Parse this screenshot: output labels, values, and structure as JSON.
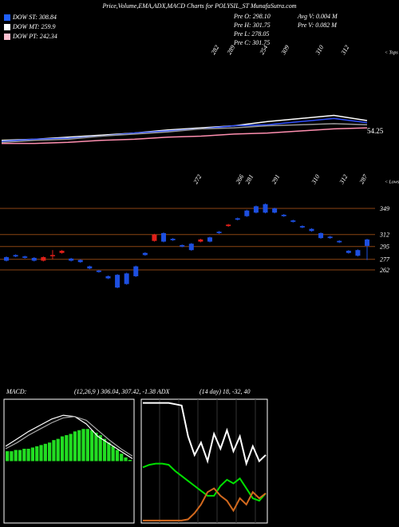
{
  "header": {
    "title": "Price,Volume,EMA,ADX,MACD Charts for POLYSIL_ST MunafaSutra.com",
    "legend": [
      {
        "label": "DOW ST: 308.84",
        "color": "#1f5fff"
      },
      {
        "label": "DOW MT: 259.9",
        "color": "#ffffff"
      },
      {
        "label": "DOW PT: 242.34",
        "color": "#ffc0d0"
      }
    ],
    "info": [
      "Pre O: 298.10",
      "Avg V: 0.004  M",
      "Pre H: 301.75",
      "Pre  V: 0.082  M",
      "Pre L: 278.05",
      "Pre C: 301.75"
    ],
    "macd_label": "MACD:",
    "macd_text": "(12,26,9 ) 306.04, 307.42, -1.38 ADX",
    "adx_text": "(14 day) 18, -32, 40"
  },
  "chart_data": [
    {
      "type": "line",
      "annotation": "54.25",
      "ylim": [
        0,
        100
      ],
      "series": [
        {
          "name": "EMA 1",
          "color": "#ffffff",
          "values": [
            11,
            12,
            14,
            16,
            18,
            21,
            23,
            25,
            29,
            32,
            35,
            30
          ]
        },
        {
          "name": "EMA 2",
          "color": "#3050ff",
          "values": [
            10,
            12,
            13,
            15,
            18,
            20,
            22,
            25,
            26,
            29,
            32,
            28
          ]
        },
        {
          "name": "EMA 3",
          "color": "#999999",
          "values": [
            9,
            11,
            12,
            15,
            17,
            19,
            22,
            23,
            25,
            26,
            27,
            26
          ]
        },
        {
          "name": "EMA 4",
          "color": "#ff8fb0",
          "values": [
            8,
            8,
            9,
            11,
            12,
            14,
            15,
            17,
            18,
            20,
            22,
            23
          ]
        }
      ]
    },
    {
      "type": "candlestick",
      "ylim": [
        236,
        370
      ],
      "up_color": "#1d4fe0",
      "down_color": "#e0201a",
      "open": [
        275,
        281,
        279,
        275,
        280,
        283,
        289,
        275,
        273,
        264,
        259,
        250,
        237,
        242,
        253,
        283,
        312,
        302,
        304,
        295,
        290,
        305,
        302,
        314,
        326,
        333,
        338,
        343,
        343,
        343,
        338,
        330,
        322,
        317,
        307,
        307,
        301,
        286,
        282,
        296
      ],
      "close": [
        280,
        283,
        281,
        279,
        275,
        282,
        286,
        278,
        276,
        267,
        261,
        253,
        255,
        257,
        267,
        286,
        303,
        314,
        306,
        297,
        299,
        302,
        308,
        316,
        324,
        335,
        346,
        352,
        355,
        349,
        340,
        332,
        324,
        320,
        314,
        309,
        303,
        289,
        290,
        305
      ],
      "high": [
        281,
        284,
        282,
        280,
        281,
        290,
        290,
        279,
        277,
        268,
        262,
        254,
        256,
        258,
        268,
        287,
        313,
        315,
        307,
        298,
        300,
        306,
        309,
        317,
        327,
        336,
        347,
        353,
        356,
        350,
        341,
        333,
        325,
        321,
        315,
        310,
        304,
        290,
        291,
        306
      ],
      "low": [
        274,
        280,
        278,
        274,
        274,
        277,
        285,
        274,
        272,
        263,
        258,
        249,
        236,
        241,
        252,
        282,
        302,
        301,
        303,
        294,
        289,
        301,
        301,
        313,
        323,
        332,
        337,
        342,
        342,
        342,
        337,
        329,
        321,
        316,
        306,
        306,
        300,
        285,
        281,
        276
      ],
      "levels": [
        349,
        312,
        295,
        277,
        262
      ],
      "tops": {
        "labels": [
          "282",
          "289",
          "254",
          "309",
          "310",
          "312"
        ],
        "marker": "< Tops"
      },
      "lows": {
        "labels": [
          "272",
          "266",
          "281",
          "291",
          "310",
          "312",
          "287"
        ],
        "marker": "< Lows"
      }
    },
    {
      "type": "macd",
      "ylim": [
        -50,
        50
      ],
      "histogram": {
        "color": "#22dd22",
        "values": [
          8,
          8,
          9,
          9,
          10,
          10,
          11,
          12,
          13,
          14,
          15,
          17,
          18,
          20,
          21,
          22,
          24,
          25,
          26,
          26,
          25,
          23,
          21,
          18,
          15,
          12,
          9,
          6,
          3,
          1
        ]
      },
      "series": [
        {
          "name": "MACD",
          "color": "#ffffff",
          "values": [
            12,
            18,
            24,
            29,
            34,
            37,
            36,
            30,
            20,
            14,
            8,
            2
          ]
        },
        {
          "name": "Signal",
          "color": "#aaaaaa",
          "values": [
            10,
            15,
            21,
            26,
            31,
            35,
            36,
            33,
            25,
            17,
            10,
            4
          ]
        }
      ]
    },
    {
      "type": "adx",
      "ylim": [
        0,
        100
      ],
      "series": [
        {
          "name": "ADX",
          "color": "#ffffff",
          "values": [
            97,
            97,
            97,
            97,
            97,
            96,
            95,
            70,
            55,
            65,
            50,
            72,
            60,
            75,
            58,
            70,
            48,
            62,
            50,
            55
          ]
        },
        {
          "name": "+DI",
          "color": "#00e000",
          "values": [
            45,
            47,
            48,
            48,
            47,
            42,
            38,
            34,
            30,
            26,
            22,
            22,
            30,
            35,
            32,
            36,
            28,
            20,
            18,
            24
          ]
        },
        {
          "name": "-DI",
          "color": "#d2691e",
          "values": [
            2,
            2,
            2,
            2,
            2,
            2,
            2,
            3,
            8,
            15,
            25,
            28,
            22,
            18,
            10,
            20,
            15,
            25,
            20,
            24
          ]
        }
      ]
    }
  ]
}
